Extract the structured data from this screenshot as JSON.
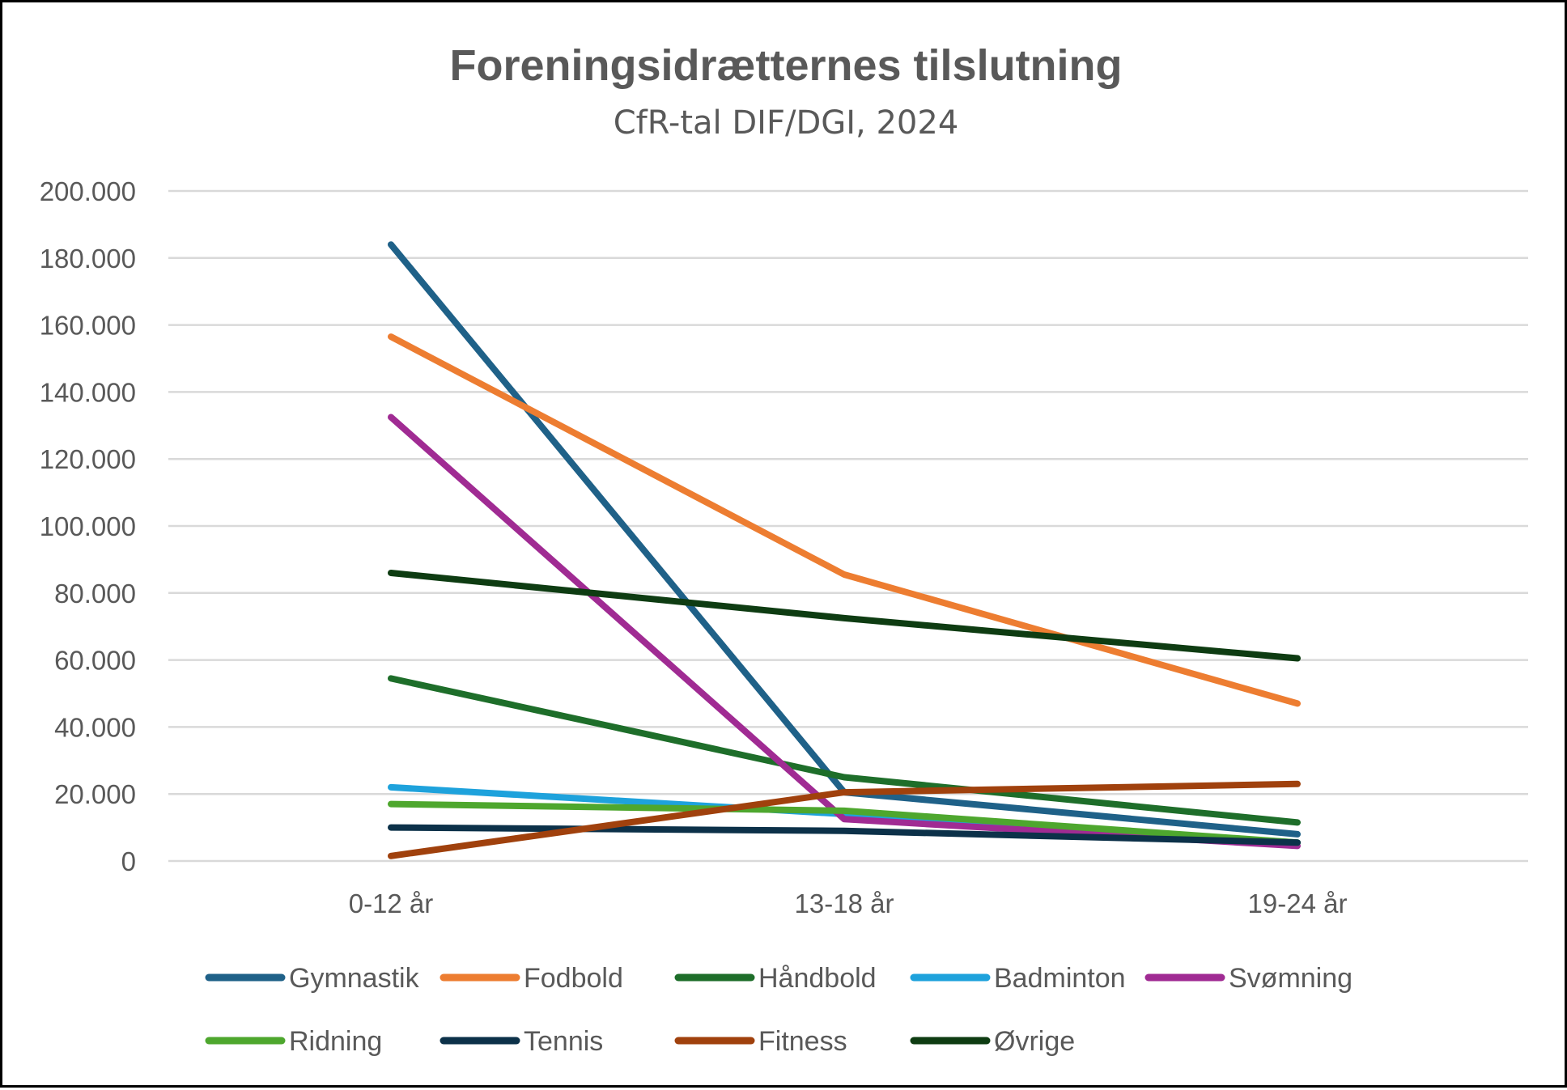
{
  "chart_data": {
    "type": "line",
    "title": "Foreningsidrætternes tilslutning",
    "subtitle": "CfR-tal DIF/DGI, 2024",
    "xlabel": "",
    "ylabel": "",
    "categories": [
      "0-12 år",
      "13-18 år",
      "19-24 år"
    ],
    "ylim": [
      0,
      200000
    ],
    "yticks": [
      0,
      20000,
      40000,
      60000,
      80000,
      100000,
      120000,
      140000,
      160000,
      180000,
      200000
    ],
    "ytick_labels": [
      "0",
      "20.000",
      "40.000",
      "60.000",
      "80.000",
      "100.000",
      "120.000",
      "140.000",
      "160.000",
      "180.000",
      "200.000"
    ],
    "grid": true,
    "legend": "bottom",
    "series": [
      {
        "name": "Gymnastik",
        "color": "#1F6188",
        "values": [
          184000,
          20500,
          8000
        ]
      },
      {
        "name": "Fodbold",
        "color": "#ED7D31",
        "values": [
          156500,
          85500,
          47000
        ]
      },
      {
        "name": "Håndbold",
        "color": "#1E6E2A",
        "values": [
          54500,
          25000,
          11500
        ]
      },
      {
        "name": "Badminton",
        "color": "#1EA2DC",
        "values": [
          22000,
          14000,
          5500
        ]
      },
      {
        "name": "Svømning",
        "color": "#A02B93",
        "values": [
          132500,
          12500,
          4500
        ]
      },
      {
        "name": "Ridning",
        "color": "#4EA72E",
        "values": [
          17000,
          15000,
          5500
        ]
      },
      {
        "name": "Tennis",
        "color": "#0C3149",
        "values": [
          10000,
          9000,
          5500
        ]
      },
      {
        "name": "Fitness",
        "color": "#A0410D",
        "values": [
          1500,
          20500,
          23000
        ]
      },
      {
        "name": "Øvrige",
        "color": "#0E3C12",
        "values": [
          86000,
          72500,
          60500
        ]
      }
    ]
  }
}
